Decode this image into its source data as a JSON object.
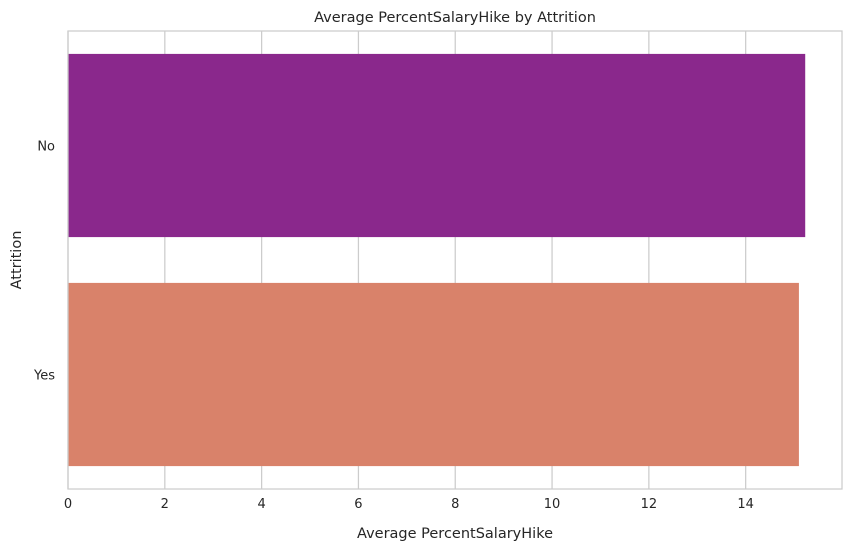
{
  "chart_data": {
    "type": "bar",
    "orientation": "horizontal",
    "title": "Average PercentSalaryHike by Attrition",
    "xlabel": "Average PercentSalaryHike",
    "ylabel": "Attrition",
    "categories": [
      "No",
      "Yes"
    ],
    "values": [
      15.23,
      15.1
    ],
    "xlim": [
      0,
      15.99
    ],
    "xticks": [
      0,
      2,
      4,
      6,
      8,
      10,
      12,
      14
    ],
    "grid": true,
    "legend": "none",
    "colors": {
      "bars": [
        "#8a288c",
        "#d9826a"
      ],
      "grid": "#cccccc",
      "spine": "#cccccc",
      "text": "#262626"
    }
  }
}
